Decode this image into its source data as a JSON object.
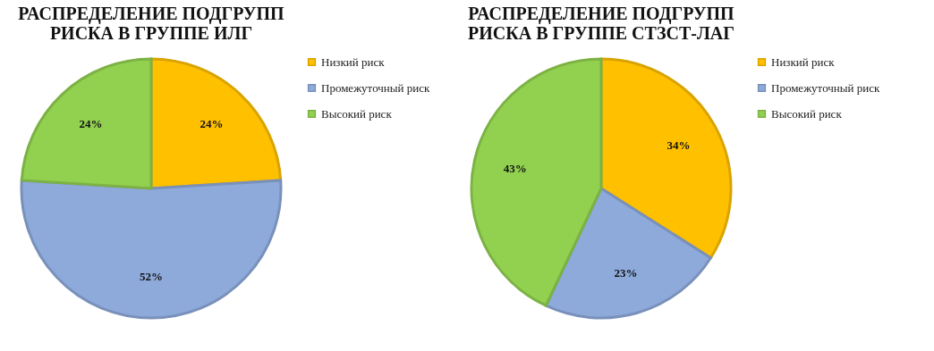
{
  "chart_data": [
    {
      "type": "pie",
      "title": "РАСПРЕДЕЛЕНИЕ ПОДГРУПП РИСКА В ГРУППЕ ИЛГ",
      "categories": [
        "Низкий риск",
        "Промежуточный риск",
        "Высокий риск"
      ],
      "values": [
        24,
        52,
        24
      ],
      "colors": [
        "#ffc000",
        "#8eaadb",
        "#92d050"
      ],
      "value_labels": [
        "24%",
        "52%",
        "24%"
      ],
      "legend": "right"
    },
    {
      "type": "pie",
      "title": "РАСПРЕДЕЛЕНИЕ ПОДГРУПП РИСКА В ГРУППЕ СТЗСТ-ЛАГ",
      "categories": [
        "Низкий риск",
        "Промежуточный риск",
        "Высокий риск"
      ],
      "values": [
        34,
        23,
        43
      ],
      "colors": [
        "#ffc000",
        "#8eaadb",
        "#92d050"
      ],
      "value_labels": [
        "34%",
        "23%",
        "43%"
      ],
      "legend": "right"
    }
  ]
}
